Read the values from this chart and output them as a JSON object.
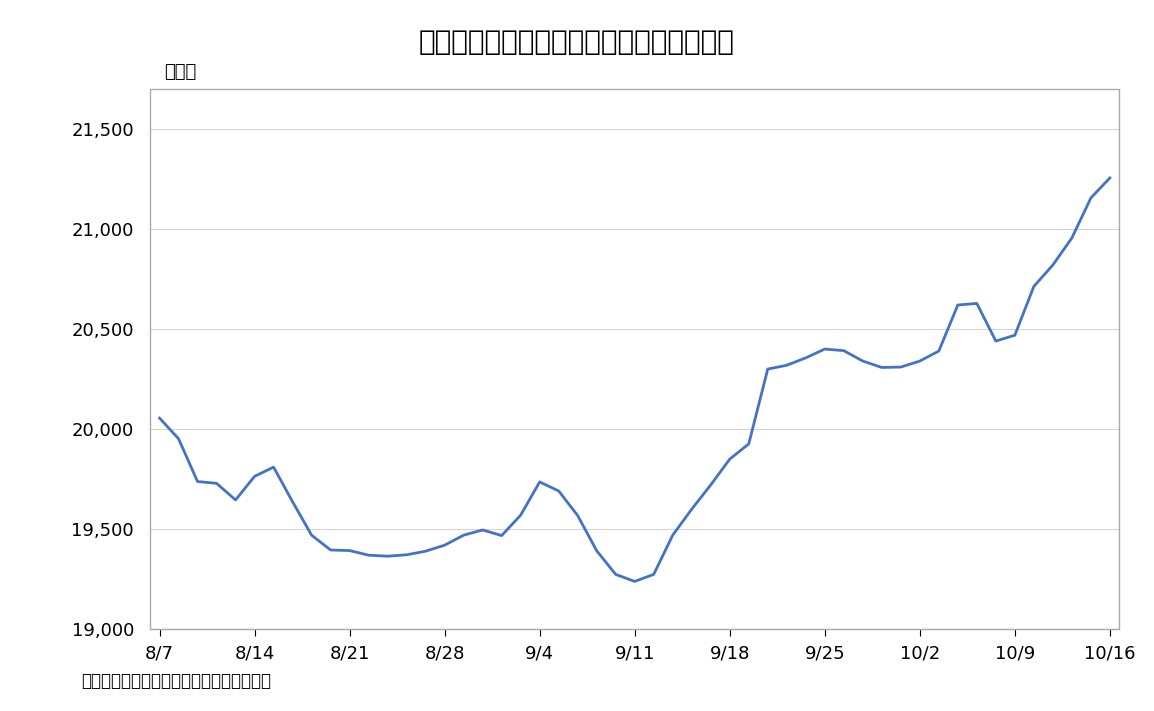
{
  "title": "【図１】外部環境の好転で日経平均が上昇",
  "ylabel_text": "（円）",
  "source_note": "（資料）　トムソンロイターより筆者作成",
  "line_color": "#4472C4",
  "bg_color": "#ffffff",
  "ylim": [
    19000,
    21700
  ],
  "yticks": [
    19000,
    19500,
    20000,
    20500,
    21000,
    21500
  ],
  "xtick_labels": [
    "8/7",
    "8/14",
    "8/21",
    "8/28",
    "9/4",
    "9/11",
    "9/18",
    "9/25",
    "10/2",
    "10/9",
    "10/16"
  ],
  "xtick_positions": [
    0,
    5,
    10,
    15,
    20,
    25,
    30,
    35,
    40,
    45,
    50
  ],
  "x": [
    0,
    1,
    2,
    3,
    4,
    5,
    6,
    7,
    8,
    9,
    10,
    11,
    12,
    13,
    14,
    15,
    16,
    17,
    18,
    19,
    20,
    21,
    22,
    23,
    24,
    25,
    26,
    27,
    28,
    29,
    30,
    31,
    32,
    33,
    34,
    35,
    36,
    37,
    38,
    39,
    40,
    41,
    42,
    43,
    44,
    45,
    46,
    47,
    48,
    49,
    50
  ],
  "y": [
    20055,
    19952,
    19738,
    19729,
    19646,
    19764,
    19810,
    19637,
    19470,
    19396,
    19393,
    19370,
    19365,
    19372,
    19390,
    19420,
    19470,
    19496,
    19468,
    19570,
    19736,
    19691,
    19568,
    19392,
    19274,
    19239,
    19274,
    19470,
    19600,
    19721,
    19850,
    19926,
    20300,
    20319,
    20356,
    20400,
    20392,
    20340,
    20308,
    20310,
    20340,
    20390,
    20620,
    20628,
    20440,
    20469,
    20713,
    20820,
    20955,
    21155,
    21255
  ],
  "title_fontsize": 20,
  "tick_fontsize": 13,
  "ylabel_fontsize": 13,
  "source_fontsize": 12,
  "linewidth": 2.0
}
